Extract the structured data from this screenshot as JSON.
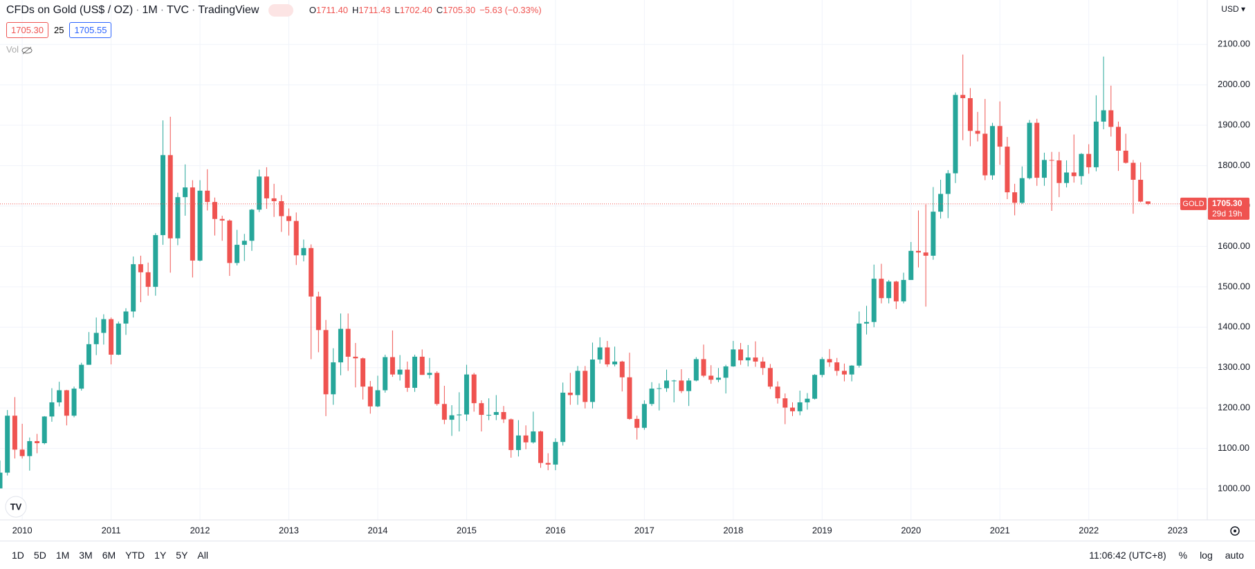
{
  "header": {
    "symbol": "CFDs on Gold (US$ / OZ)",
    "interval": "1M",
    "exchange": "TVC",
    "source": "TradingView",
    "ohlc": [
      {
        "label": "O",
        "value": "1711.40"
      },
      {
        "label": "H",
        "value": "1711.43"
      },
      {
        "label": "L",
        "value": "1702.40"
      },
      {
        "label": "C",
        "value": "1705.30"
      }
    ],
    "change": "−5.63 (−0.33%)",
    "bid": "1705.30",
    "spread": "25",
    "ask": "1705.55",
    "volume": "Vol",
    "currency": "USD"
  },
  "toolbar": {
    "ranges": [
      "1D",
      "5D",
      "1M",
      "3M",
      "6M",
      "YTD",
      "1Y",
      "5Y",
      "All"
    ],
    "clock": "11:06:42 (UTC+8)",
    "percent": "%",
    "log": "log",
    "auto": "auto"
  },
  "chart_data": {
    "type": "candlestick",
    "up_color": "#26a69a",
    "down_color": "#ef5350",
    "grid": true,
    "xlim": [
      "2009-10",
      "2023-05"
    ],
    "xticks": [
      2010,
      2011,
      2012,
      2013,
      2014,
      2015,
      2016,
      2017,
      2018,
      2019,
      2020,
      2021,
      2022,
      2023
    ],
    "ylim": [
      923,
      2210
    ],
    "yticks": [
      {
        "value": 1000,
        "label": "1000.00"
      },
      {
        "value": 1100,
        "label": "1100.00"
      },
      {
        "value": 1200,
        "label": "1200.00"
      },
      {
        "value": 1300,
        "label": "1300.00"
      },
      {
        "value": 1400,
        "label": "1400.00"
      },
      {
        "value": 1500,
        "label": "1500.00"
      },
      {
        "value": 1600,
        "label": "1600.00"
      },
      {
        "value": 1700,
        "label": "1700.00"
      },
      {
        "value": 1800,
        "label": "1800.00"
      },
      {
        "value": 1900,
        "label": "1900.00"
      },
      {
        "value": 2000,
        "label": "2000.00"
      },
      {
        "value": 2100,
        "label": "2100.00"
      }
    ],
    "price_line": {
      "name": "GOLD",
      "value": 1705.3,
      "label": "1705.30",
      "countdown": "29d 19h",
      "color": "#ef5350"
    },
    "x": [
      "2009-10",
      "2009-11",
      "2009-12",
      "2010-01",
      "2010-02",
      "2010-03",
      "2010-04",
      "2010-05",
      "2010-06",
      "2010-07",
      "2010-08",
      "2010-09",
      "2010-10",
      "2010-11",
      "2010-12",
      "2011-01",
      "2011-02",
      "2011-03",
      "2011-04",
      "2011-05",
      "2011-06",
      "2011-07",
      "2011-08",
      "2011-09",
      "2011-10",
      "2011-11",
      "2011-12",
      "2012-01",
      "2012-02",
      "2012-03",
      "2012-04",
      "2012-05",
      "2012-06",
      "2012-07",
      "2012-08",
      "2012-09",
      "2012-10",
      "2012-11",
      "2012-12",
      "2013-01",
      "2013-02",
      "2013-03",
      "2013-04",
      "2013-05",
      "2013-06",
      "2013-07",
      "2013-08",
      "2013-09",
      "2013-10",
      "2013-11",
      "2013-12",
      "2014-01",
      "2014-02",
      "2014-03",
      "2014-04",
      "2014-05",
      "2014-06",
      "2014-07",
      "2014-08",
      "2014-09",
      "2014-10",
      "2014-11",
      "2014-12",
      "2015-01",
      "2015-02",
      "2015-03",
      "2015-04",
      "2015-05",
      "2015-06",
      "2015-07",
      "2015-08",
      "2015-09",
      "2015-10",
      "2015-11",
      "2015-12",
      "2016-01",
      "2016-02",
      "2016-03",
      "2016-04",
      "2016-05",
      "2016-06",
      "2016-07",
      "2016-08",
      "2016-09",
      "2016-10",
      "2016-11",
      "2016-12",
      "2017-01",
      "2017-02",
      "2017-03",
      "2017-04",
      "2017-05",
      "2017-06",
      "2017-07",
      "2017-08",
      "2017-09",
      "2017-10",
      "2017-11",
      "2017-12",
      "2018-01",
      "2018-02",
      "2018-03",
      "2018-04",
      "2018-05",
      "2018-06",
      "2018-07",
      "2018-08",
      "2018-09",
      "2018-10",
      "2018-11",
      "2018-12",
      "2019-01",
      "2019-02",
      "2019-03",
      "2019-04",
      "2019-05",
      "2019-06",
      "2019-07",
      "2019-08",
      "2019-09",
      "2019-10",
      "2019-11",
      "2019-12",
      "2020-01",
      "2020-02",
      "2020-03",
      "2020-04",
      "2020-05",
      "2020-06",
      "2020-07",
      "2020-08",
      "2020-09",
      "2020-10",
      "2020-11",
      "2020-12",
      "2021-01",
      "2021-02",
      "2021-03",
      "2021-04",
      "2021-05",
      "2021-06",
      "2021-07",
      "2021-08",
      "2021-09",
      "2021-10",
      "2021-11",
      "2021-12",
      "2022-01",
      "2022-02",
      "2022-03",
      "2022-04",
      "2022-05",
      "2022-06",
      "2022-07",
      "2022-08",
      "2022-09"
    ],
    "open": [
      1001,
      1040,
      1181,
      1097,
      1081,
      1118,
      1113,
      1179,
      1214,
      1244,
      1181,
      1248,
      1307,
      1358,
      1386,
      1420,
      1332,
      1409,
      1439,
      1556,
      1536,
      1500,
      1628,
      1826,
      1620,
      1722,
      1746,
      1565,
      1738,
      1710,
      1668,
      1664,
      1559,
      1604,
      1614,
      1691,
      1773,
      1719,
      1712,
      1675,
      1663,
      1578,
      1596,
      1476,
      1393,
      1234,
      1313,
      1396,
      1327,
      1323,
      1253,
      1204,
      1244,
      1326,
      1283,
      1295,
      1250,
      1327,
      1282,
      1287,
      1210,
      1171,
      1182,
      1184,
      1283,
      1212,
      1183,
      1183,
      1190,
      1172,
      1096,
      1132,
      1115,
      1142,
      1064,
      1060,
      1116,
      1238,
      1232,
      1292,
      1215,
      1320,
      1350,
      1308,
      1315,
      1276,
      1173,
      1151,
      1210,
      1248,
      1249,
      1268,
      1268,
      1242,
      1268,
      1321,
      1280,
      1270,
      1275,
      1303,
      1345,
      1318,
      1325,
      1315,
      1299,
      1253,
      1224,
      1201,
      1192,
      1214,
      1223,
      1282,
      1321,
      1313,
      1292,
      1283,
      1305,
      1409,
      1413,
      1520,
      1472,
      1513,
      1464,
      1517,
      1589,
      1585,
      1577,
      1686,
      1730,
      1781,
      1975,
      1967,
      1886,
      1879,
      1776,
      1898,
      1847,
      1734,
      1708,
      1769,
      1906,
      1770,
      1814,
      1813,
      1757,
      1783,
      1774,
      1829,
      1796,
      1909,
      1937,
      1896,
      1837,
      1807,
      1765,
      1711.4
    ],
    "high": [
      1070,
      1195,
      1227,
      1161,
      1127,
      1136,
      1180,
      1249,
      1265,
      1245,
      1253,
      1312,
      1388,
      1424,
      1432,
      1424,
      1414,
      1447,
      1575,
      1577,
      1560,
      1633,
      1912,
      1921,
      1733,
      1803,
      1764,
      1764,
      1791,
      1721,
      1676,
      1667,
      1641,
      1631,
      1693,
      1790,
      1796,
      1755,
      1727,
      1694,
      1684,
      1617,
      1605,
      1488,
      1418,
      1348,
      1434,
      1434,
      1361,
      1325,
      1267,
      1280,
      1332,
      1392,
      1331,
      1315,
      1332,
      1345,
      1324,
      1291,
      1255,
      1207,
      1239,
      1307,
      1287,
      1219,
      1224,
      1232,
      1205,
      1174,
      1170,
      1157,
      1191,
      1144,
      1088,
      1125,
      1263,
      1287,
      1304,
      1304,
      1362,
      1375,
      1366,
      1352,
      1317,
      1337,
      1181,
      1219,
      1264,
      1261,
      1295,
      1270,
      1296,
      1274,
      1326,
      1357,
      1306,
      1299,
      1307,
      1366,
      1361,
      1356,
      1365,
      1326,
      1309,
      1266,
      1236,
      1214,
      1243,
      1237,
      1284,
      1326,
      1346,
      1324,
      1310,
      1306,
      1439,
      1453,
      1555,
      1557,
      1517,
      1515,
      1535,
      1611,
      1689,
      1704,
      1747,
      1765,
      1789,
      1981,
      2075,
      1992,
      1933,
      1965,
      1906,
      1959,
      1871,
      1755,
      1798,
      1913,
      1916,
      1832,
      1834,
      1834,
      1813,
      1877,
      1831,
      1853,
      1974,
      2070,
      1998,
      1909,
      1879,
      1814,
      1808,
      1711.43
    ],
    "low": [
      1003,
      1033,
      1075,
      1075,
      1045,
      1088,
      1110,
      1166,
      1204,
      1157,
      1177,
      1243,
      1307,
      1331,
      1357,
      1308,
      1331,
      1381,
      1424,
      1462,
      1478,
      1478,
      1604,
      1535,
      1603,
      1676,
      1523,
      1563,
      1689,
      1627,
      1614,
      1527,
      1553,
      1564,
      1589,
      1685,
      1693,
      1673,
      1636,
      1627,
      1554,
      1563,
      1321,
      1338,
      1180,
      1208,
      1281,
      1292,
      1251,
      1221,
      1186,
      1202,
      1238,
      1277,
      1268,
      1240,
      1240,
      1282,
      1273,
      1206,
      1160,
      1131,
      1142,
      1168,
      1191,
      1142,
      1170,
      1170,
      1163,
      1077,
      1080,
      1098,
      1112,
      1052,
      1046,
      1046,
      1107,
      1208,
      1208,
      1199,
      1199,
      1310,
      1302,
      1303,
      1241,
      1171,
      1122,
      1146,
      1205,
      1194,
      1240,
      1214,
      1237,
      1205,
      1266,
      1276,
      1260,
      1264,
      1236,
      1302,
      1307,
      1303,
      1302,
      1282,
      1247,
      1211,
      1160,
      1180,
      1182,
      1196,
      1221,
      1276,
      1302,
      1280,
      1266,
      1266,
      1300,
      1382,
      1400,
      1459,
      1459,
      1445,
      1459,
      1517,
      1548,
      1451,
      1567,
      1669,
      1670,
      1757,
      1863,
      1848,
      1860,
      1764,
      1765,
      1802,
      1717,
      1677,
      1705,
      1766,
      1750,
      1750,
      1688,
      1722,
      1746,
      1758,
      1753,
      1780,
      1786,
      1890,
      1872,
      1787,
      1805,
      1681,
      1709,
      1702.4
    ],
    "close": [
      1040,
      1181,
      1097,
      1081,
      1118,
      1113,
      1179,
      1214,
      1244,
      1181,
      1248,
      1307,
      1358,
      1386,
      1420,
      1332,
      1409,
      1439,
      1556,
      1536,
      1500,
      1628,
      1826,
      1620,
      1722,
      1746,
      1565,
      1738,
      1710,
      1668,
      1664,
      1559,
      1604,
      1614,
      1691,
      1773,
      1719,
      1712,
      1675,
      1663,
      1578,
      1596,
      1476,
      1393,
      1234,
      1313,
      1396,
      1327,
      1323,
      1253,
      1204,
      1244,
      1326,
      1283,
      1295,
      1250,
      1327,
      1282,
      1287,
      1210,
      1171,
      1182,
      1184,
      1283,
      1212,
      1183,
      1183,
      1190,
      1172,
      1096,
      1132,
      1115,
      1142,
      1064,
      1060,
      1116,
      1238,
      1232,
      1292,
      1215,
      1320,
      1350,
      1308,
      1315,
      1276,
      1173,
      1151,
      1210,
      1248,
      1249,
      1268,
      1268,
      1242,
      1268,
      1321,
      1280,
      1270,
      1275,
      1303,
      1345,
      1318,
      1325,
      1315,
      1299,
      1253,
      1224,
      1201,
      1192,
      1214,
      1223,
      1282,
      1321,
      1313,
      1292,
      1283,
      1305,
      1409,
      1413,
      1520,
      1472,
      1513,
      1464,
      1517,
      1589,
      1585,
      1577,
      1686,
      1730,
      1781,
      1975,
      1967,
      1886,
      1879,
      1776,
      1898,
      1847,
      1734,
      1708,
      1769,
      1906,
      1770,
      1814,
      1813,
      1757,
      1783,
      1774,
      1829,
      1796,
      1909,
      1937,
      1896,
      1837,
      1807,
      1765,
      1711,
      1705.3
    ]
  }
}
